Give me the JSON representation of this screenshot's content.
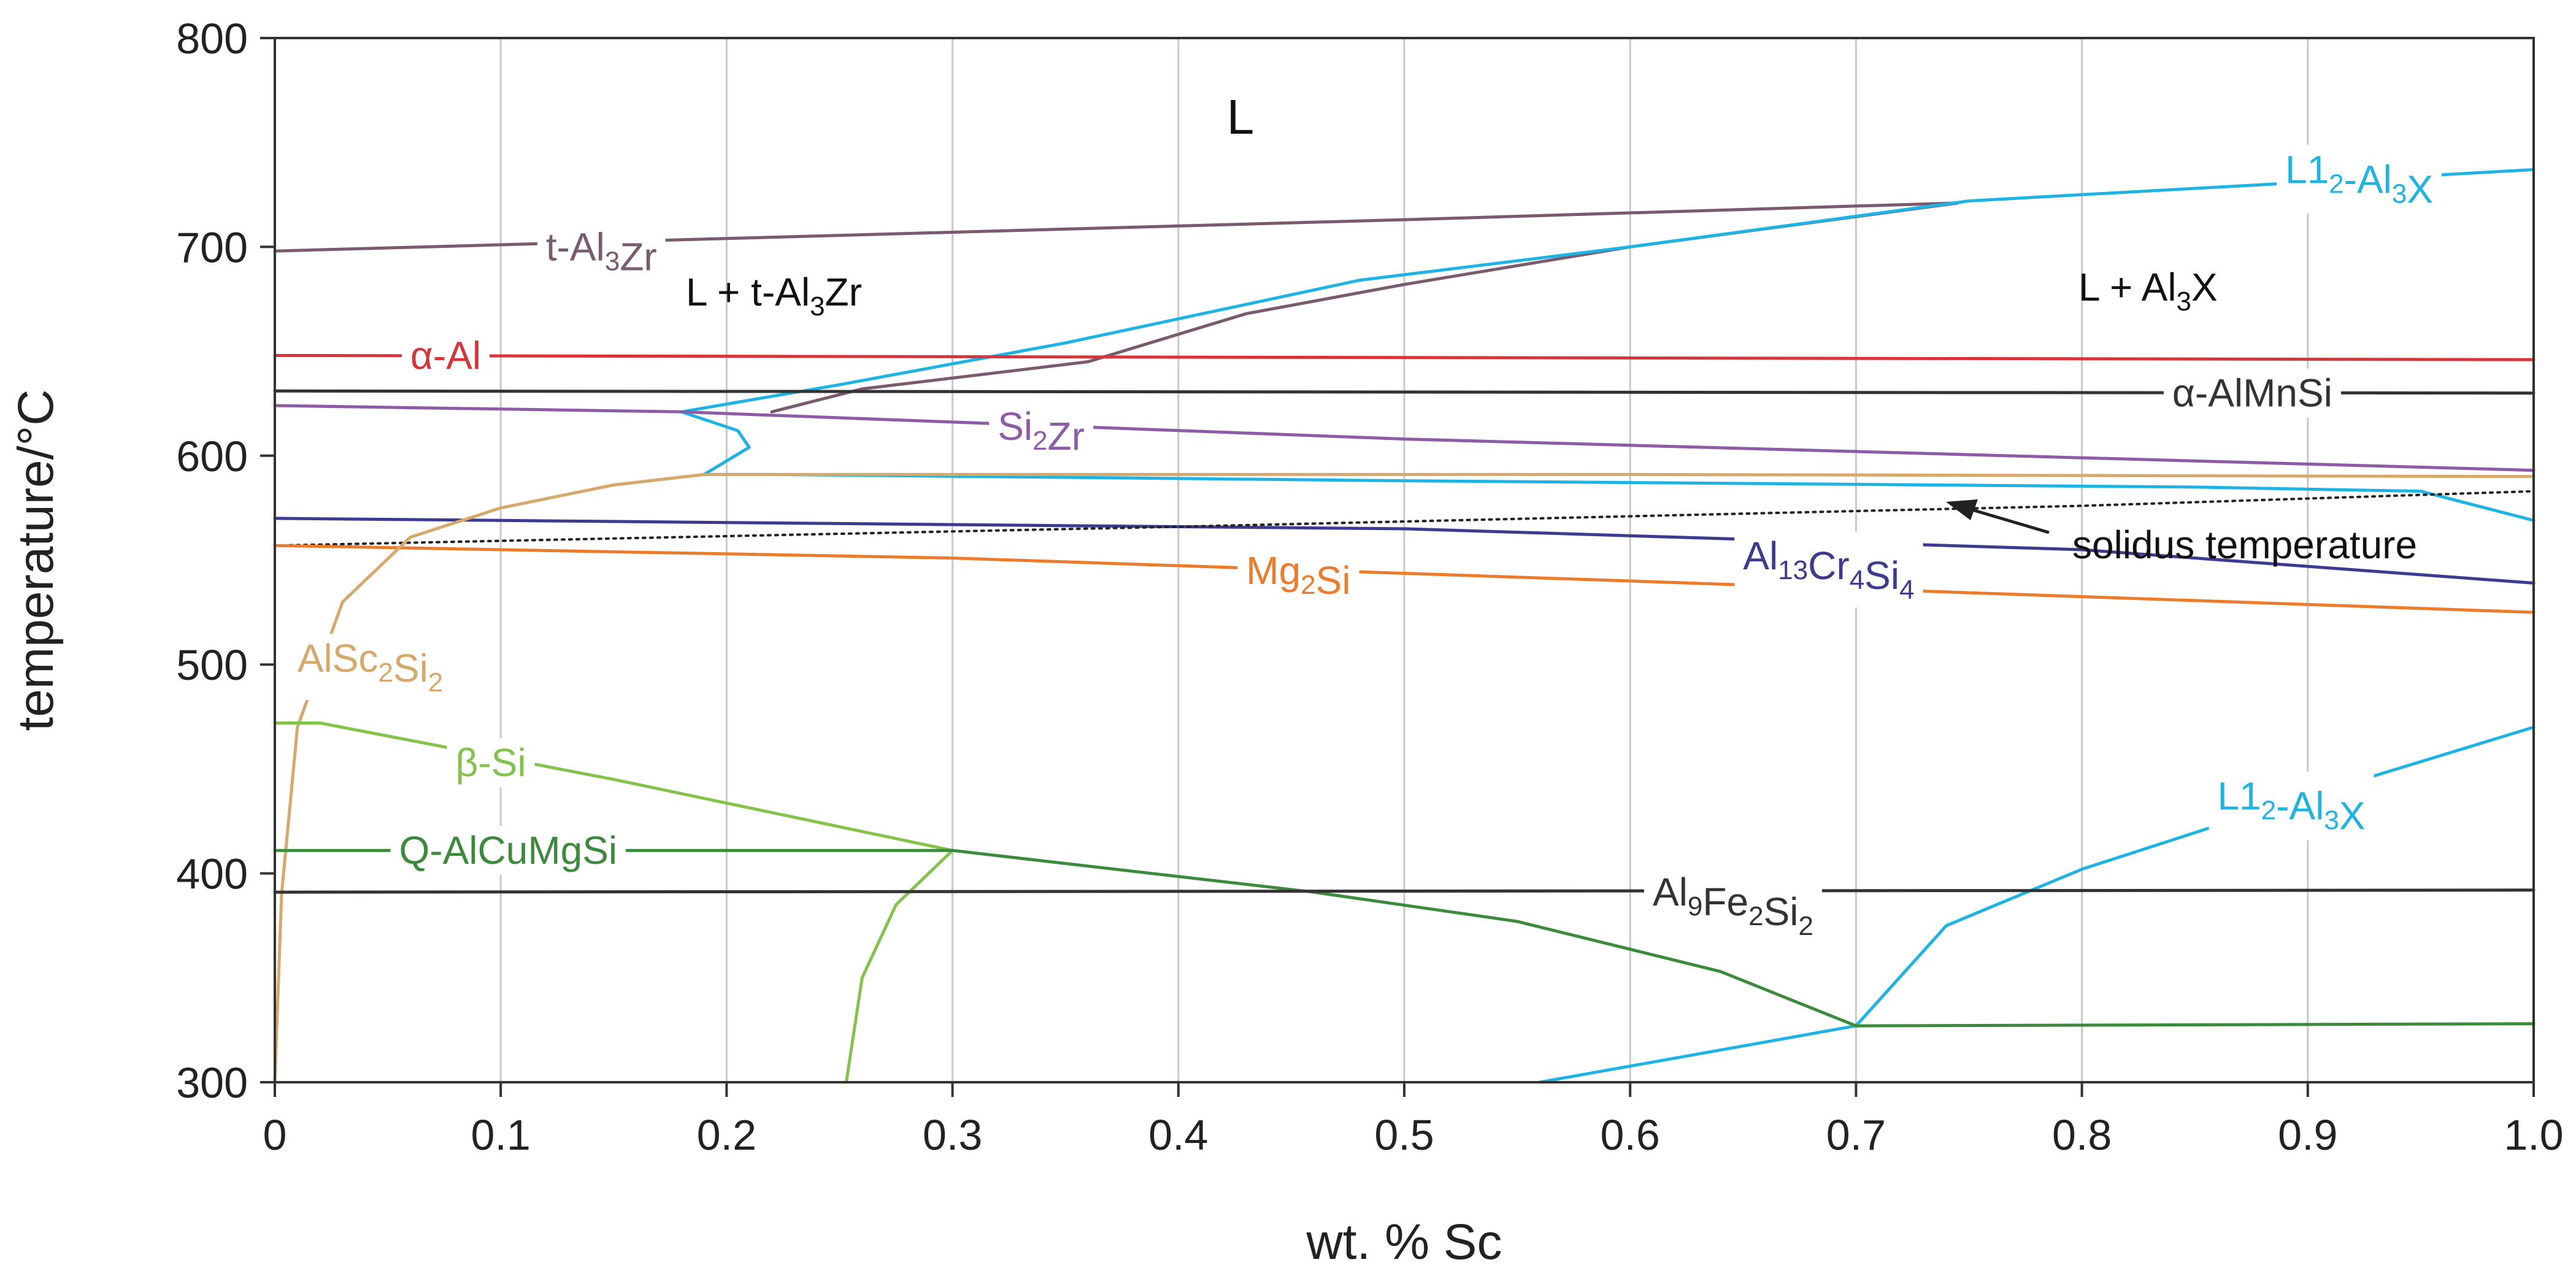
{
  "chart_data": {
    "type": "line",
    "title": "",
    "xlabel": "wt. % Sc",
    "ylabel": "temperature/°C",
    "xlim": [
      0,
      1.0
    ],
    "ylim": [
      300,
      800
    ],
    "grid": "vertical",
    "x_ticks": [
      "0",
      "0.1",
      "0.2",
      "0.3",
      "0.4",
      "0.5",
      "0.6",
      "0.7",
      "0.8",
      "0.9",
      "1.0"
    ],
    "y_ticks": [
      "300",
      "400",
      "500",
      "600",
      "700",
      "800"
    ],
    "regions": {
      "liquid": "L",
      "l_plus_zr": "L + t-Al3Zr",
      "l_plus_x": "L + Al3X"
    },
    "annotation": {
      "text": "solidus temperature"
    },
    "series": [
      {
        "key": "t_al3zr",
        "name": "t-Al3Zr",
        "color": "#7a5a6e",
        "points": [
          [
            0,
            698
          ],
          [
            0.5,
            713
          ],
          [
            0.745,
            721
          ]
        ]
      },
      {
        "key": "t_al3zr_solvus",
        "name": "t-Al3Zr solvus",
        "color": "#7a5a6e",
        "points": [
          [
            0.22,
            621
          ],
          [
            0.26,
            632
          ],
          [
            0.36,
            645
          ],
          [
            0.43,
            668
          ],
          [
            0.5,
            682
          ],
          [
            0.6,
            700
          ],
          [
            0.745,
            721
          ]
        ]
      },
      {
        "key": "l12_upper",
        "name": "L12-Al3X",
        "color": "#1db4e4",
        "points": [
          [
            0.18,
            621
          ],
          [
            0.25,
            634
          ],
          [
            0.35,
            654
          ],
          [
            0.48,
            684
          ],
          [
            0.6,
            700
          ],
          [
            0.75,
            722
          ],
          [
            0.9,
            731
          ],
          [
            1.0,
            737
          ]
        ]
      },
      {
        "key": "l12_loop",
        "name": "L12 nose",
        "color": "#1db4e4",
        "points": [
          [
            0.18,
            621
          ],
          [
            0.205,
            612
          ],
          [
            0.21,
            604
          ],
          [
            0.19,
            591
          ],
          [
            0.22,
            591
          ],
          [
            0.5,
            588
          ],
          [
            0.85,
            585
          ],
          [
            0.95,
            583
          ],
          [
            1.0,
            569
          ]
        ]
      },
      {
        "key": "l12_lower",
        "name": "L12-Al3X",
        "color": "#1db4e4",
        "points": [
          [
            0.56,
            300
          ],
          [
            0.7,
            327
          ],
          [
            0.74,
            375
          ],
          [
            0.8,
            402
          ],
          [
            0.9,
            437
          ],
          [
            1.0,
            470
          ]
        ]
      },
      {
        "key": "alpha_al",
        "name": "α-Al",
        "color": "#d9343a",
        "points": [
          [
            0,
            648
          ],
          [
            1.0,
            646
          ]
        ]
      },
      {
        "key": "alpha_almnsi",
        "name": "α-AlMnSi",
        "color": "#333333",
        "points": [
          [
            0,
            631
          ],
          [
            1.0,
            630
          ]
        ]
      },
      {
        "key": "si2zr",
        "name": "Si2Zr",
        "color": "#8e5ba6",
        "points": [
          [
            0,
            624
          ],
          [
            0.18,
            621
          ],
          [
            0.5,
            608
          ],
          [
            0.8,
            599
          ],
          [
            1.0,
            593
          ]
        ]
      },
      {
        "key": "alsc2si2_upper",
        "name": "AlSc2Si2 line",
        "color": "#d6a86a",
        "points": [
          [
            0.19,
            591
          ],
          [
            0.6,
            591
          ],
          [
            1.0,
            590
          ]
        ]
      },
      {
        "key": "al13cr4si4",
        "name": "Al13Cr4Si4",
        "color": "#3d3b8f",
        "points": [
          [
            0,
            570
          ],
          [
            0.5,
            565
          ],
          [
            0.8,
            555
          ],
          [
            1.0,
            539
          ]
        ]
      },
      {
        "key": "solidus",
        "name": "solidus temperature",
        "color": "#222222",
        "dashed": true,
        "points": [
          [
            0,
            557
          ],
          [
            0.4,
            566
          ],
          [
            0.8,
            576
          ],
          [
            1.0,
            583
          ]
        ]
      },
      {
        "key": "mg2si",
        "name": "Mg2Si",
        "color": "#ec7c2c",
        "points": [
          [
            0,
            557
          ],
          [
            0.3,
            551
          ],
          [
            0.6,
            540
          ],
          [
            1.0,
            525
          ]
        ]
      },
      {
        "key": "alsc2si2",
        "name": "AlSc2Si2",
        "color": "#d6a86a",
        "points": [
          [
            0,
            300
          ],
          [
            0.003,
            390
          ],
          [
            0.01,
            470
          ],
          [
            0.03,
            530
          ],
          [
            0.06,
            561
          ],
          [
            0.1,
            575
          ],
          [
            0.15,
            586
          ],
          [
            0.19,
            591
          ]
        ]
      },
      {
        "key": "beta_si",
        "name": "β-Si",
        "color": "#84c34b",
        "points": [
          [
            0,
            472
          ],
          [
            0.02,
            472
          ],
          [
            0.15,
            445
          ],
          [
            0.3,
            411
          ]
        ]
      },
      {
        "key": "beta_si_lower",
        "name": "β-Si solvus",
        "color": "#84c34b",
        "points": [
          [
            0.253,
            300
          ],
          [
            0.26,
            350
          ],
          [
            0.275,
            385
          ],
          [
            0.3,
            411
          ]
        ]
      },
      {
        "key": "q_alcumgsi",
        "name": "Q-AlCuMgSi",
        "color": "#3c8a3c",
        "points": [
          [
            0,
            411
          ],
          [
            0.3,
            411
          ],
          [
            0.46,
            391
          ],
          [
            0.55,
            377
          ],
          [
            0.64,
            353
          ],
          [
            0.7,
            327
          ],
          [
            1.0,
            328
          ]
        ]
      },
      {
        "key": "al9fe2si2",
        "name": "Al9Fe2Si2",
        "color": "#333333",
        "points": [
          [
            0,
            391
          ],
          [
            1.0,
            392
          ]
        ]
      }
    ],
    "labels": [
      {
        "series": "t_al3zr",
        "base": "t-Al",
        "sub1": "3",
        "mid": "Zr",
        "sub2": "",
        "tail": ""
      },
      {
        "series": "l12_upper",
        "base": "L1",
        "sub1": "2",
        "mid": "-Al",
        "sub2": "3",
        "tail": "X"
      },
      {
        "series": "alpha_al",
        "base": "α-Al",
        "sub1": "",
        "mid": "",
        "sub2": "",
        "tail": ""
      },
      {
        "series": "alpha_almnsi",
        "base": "α-AlMnSi",
        "sub1": "",
        "mid": "",
        "sub2": "",
        "tail": ""
      },
      {
        "series": "si2zr",
        "base": "Si",
        "sub1": "2",
        "mid": "Zr",
        "sub2": "",
        "tail": ""
      },
      {
        "series": "al13cr4si4",
        "base": "Al",
        "sub1": "13",
        "mid": "Cr",
        "sub2": "4",
        "tail": "Si",
        "sub3": "4"
      },
      {
        "series": "mg2si",
        "base": "Mg",
        "sub1": "2",
        "mid": "Si",
        "sub2": "",
        "tail": ""
      },
      {
        "series": "alsc2si2",
        "base": "AlSc",
        "sub1": "2",
        "mid": "Si",
        "sub2": "2",
        "tail": ""
      },
      {
        "series": "beta_si",
        "base": "β-Si",
        "sub1": "",
        "mid": "",
        "sub2": "",
        "tail": ""
      },
      {
        "series": "q_alcumgsi",
        "base": "Q-AlCuMgSi",
        "sub1": "",
        "mid": "",
        "sub2": "",
        "tail": ""
      },
      {
        "series": "al9fe2si2",
        "base": "Al",
        "sub1": "9",
        "mid": "Fe",
        "sub2": "2",
        "tail": "Si",
        "sub3": "2"
      },
      {
        "series": "l12_lower",
        "base": "L1",
        "sub1": "2",
        "mid": "-Al",
        "sub2": "3",
        "tail": "X"
      }
    ]
  }
}
